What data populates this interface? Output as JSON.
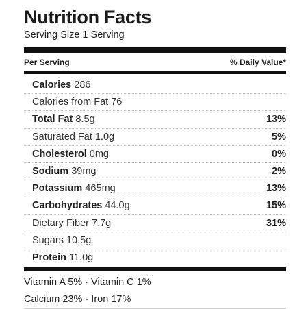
{
  "title": "Nutrition Facts",
  "serving": "Serving Size 1 Serving",
  "header": {
    "left": "Per Serving",
    "right": "% Daily Value*"
  },
  "rows": [
    {
      "bold": "Calories",
      "value": " 286",
      "pct": ""
    },
    {
      "bold": "",
      "value": "Calories from Fat 76",
      "pct": ""
    },
    {
      "bold": "Total Fat",
      "value": " 8.5g",
      "pct": "13%"
    },
    {
      "bold": "",
      "value": "Saturated Fat 1.0g",
      "pct": "5%"
    },
    {
      "bold": "Cholesterol",
      "value": " 0mg",
      "pct": "0%"
    },
    {
      "bold": "Sodium",
      "value": " 39mg",
      "pct": "2%"
    },
    {
      "bold": "Potassium",
      "value": " 465mg",
      "pct": "13%"
    },
    {
      "bold": "Carbohydrates",
      "value": " 44.0g",
      "pct": "15%"
    },
    {
      "bold": "",
      "value": "Dietary Fiber 7.7g",
      "pct": "31%"
    },
    {
      "bold": "",
      "value": "Sugars 10.5g",
      "pct": ""
    },
    {
      "bold": "Protein",
      "value": " 11.0g",
      "pct": ""
    }
  ],
  "vitamins_line1": "Vitamin A 5% · Vitamin C 1%",
  "vitamins_line2": "Calcium 23% · Iron 17%"
}
